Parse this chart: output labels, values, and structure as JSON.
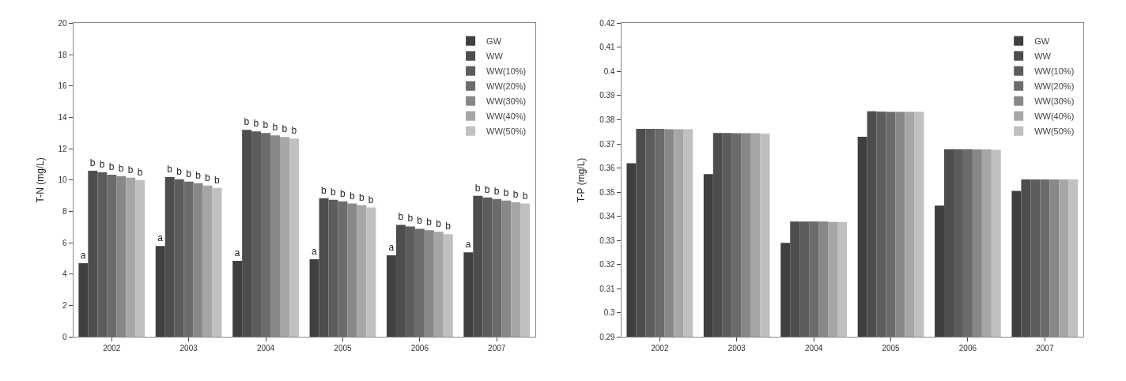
{
  "chart_data": [
    {
      "type": "bar",
      "ylabel": "T-N (mg/L)",
      "categories": [
        "2002",
        "2003",
        "2004",
        "2005",
        "2006",
        "2007"
      ],
      "ylim": [
        0,
        20
      ],
      "yticks": [
        0,
        2,
        4,
        6,
        8,
        10,
        12,
        14,
        16,
        18,
        20
      ],
      "legend": "top right",
      "series": [
        {
          "name": "GW",
          "color": "#3f3f3f",
          "values": [
            4.7,
            5.8,
            4.85,
            4.95,
            5.2,
            5.4
          ],
          "value_labels": [
            "a",
            "a",
            "a",
            "a",
            "a",
            "a"
          ]
        },
        {
          "name": "WW",
          "color": "#4d4d4d",
          "values": [
            10.6,
            10.2,
            13.2,
            8.85,
            7.15,
            9.0
          ],
          "value_labels": [
            "b",
            "b",
            "b",
            "b",
            "b",
            "b"
          ]
        },
        {
          "name": "WW(10%)",
          "color": "#5c5c5c",
          "values": [
            10.5,
            10.05,
            13.1,
            8.75,
            7.05,
            8.9
          ],
          "value_labels": [
            "b",
            "b",
            "b",
            "b",
            "b",
            "b"
          ]
        },
        {
          "name": "WW(20%)",
          "color": "#6b6b6b",
          "values": [
            10.35,
            9.9,
            13.0,
            8.65,
            6.9,
            8.8
          ],
          "value_labels": [
            "b",
            "b",
            "b",
            "b",
            "b",
            "b"
          ]
        },
        {
          "name": "WW(30%)",
          "color": "#888888",
          "values": [
            10.25,
            9.8,
            12.85,
            8.5,
            6.8,
            8.7
          ],
          "value_labels": [
            "b",
            "b",
            "b",
            "b",
            "b",
            "b"
          ]
        },
        {
          "name": "WW(40%)",
          "color": "#a6a6a6",
          "values": [
            10.15,
            9.65,
            12.75,
            8.4,
            6.7,
            8.6
          ],
          "value_labels": [
            "b",
            "b",
            "b",
            "b",
            "b",
            "b"
          ]
        },
        {
          "name": "WW(50%)",
          "color": "#c0c0c0",
          "values": [
            10.0,
            9.5,
            12.65,
            8.25,
            6.55,
            8.5
          ],
          "value_labels": [
            "b",
            "b",
            "b",
            "b",
            "b",
            "b"
          ]
        }
      ]
    },
    {
      "type": "bar",
      "ylabel": "T-P (mg/L)",
      "categories": [
        "2002",
        "2003",
        "2004",
        "2005",
        "2006",
        "2007"
      ],
      "ylim": [
        0.29,
        0.42
      ],
      "yticks": [
        0.29,
        0.3,
        0.31,
        0.32,
        0.33,
        0.34,
        0.35,
        0.36,
        0.37,
        0.38,
        0.39,
        0.4,
        0.41,
        0.42
      ],
      "legend": "top right",
      "series": [
        {
          "name": "GW",
          "color": "#3f3f3f",
          "values": [
            0.362,
            0.3575,
            0.329,
            0.373,
            0.3445,
            0.3505
          ]
        },
        {
          "name": "WW",
          "color": "#4d4d4d",
          "values": [
            0.3762,
            0.3745,
            0.3378,
            0.3835,
            0.3678,
            0.3553
          ]
        },
        {
          "name": "WW(10%)",
          "color": "#5c5c5c",
          "values": [
            0.3762,
            0.3745,
            0.3378,
            0.3834,
            0.3678,
            0.3553
          ]
        },
        {
          "name": "WW(20%)",
          "color": "#6b6b6b",
          "values": [
            0.3762,
            0.3744,
            0.3378,
            0.3833,
            0.3678,
            0.3553
          ]
        },
        {
          "name": "WW(30%)",
          "color": "#888888",
          "values": [
            0.3761,
            0.3744,
            0.3378,
            0.3833,
            0.3677,
            0.3553
          ]
        },
        {
          "name": "WW(40%)",
          "color": "#a6a6a6",
          "values": [
            0.3761,
            0.3744,
            0.3377,
            0.3833,
            0.3677,
            0.3553
          ]
        },
        {
          "name": "WW(50%)",
          "color": "#c0c0c0",
          "values": [
            0.3761,
            0.3743,
            0.3377,
            0.3833,
            0.3676,
            0.3553
          ]
        }
      ]
    }
  ]
}
